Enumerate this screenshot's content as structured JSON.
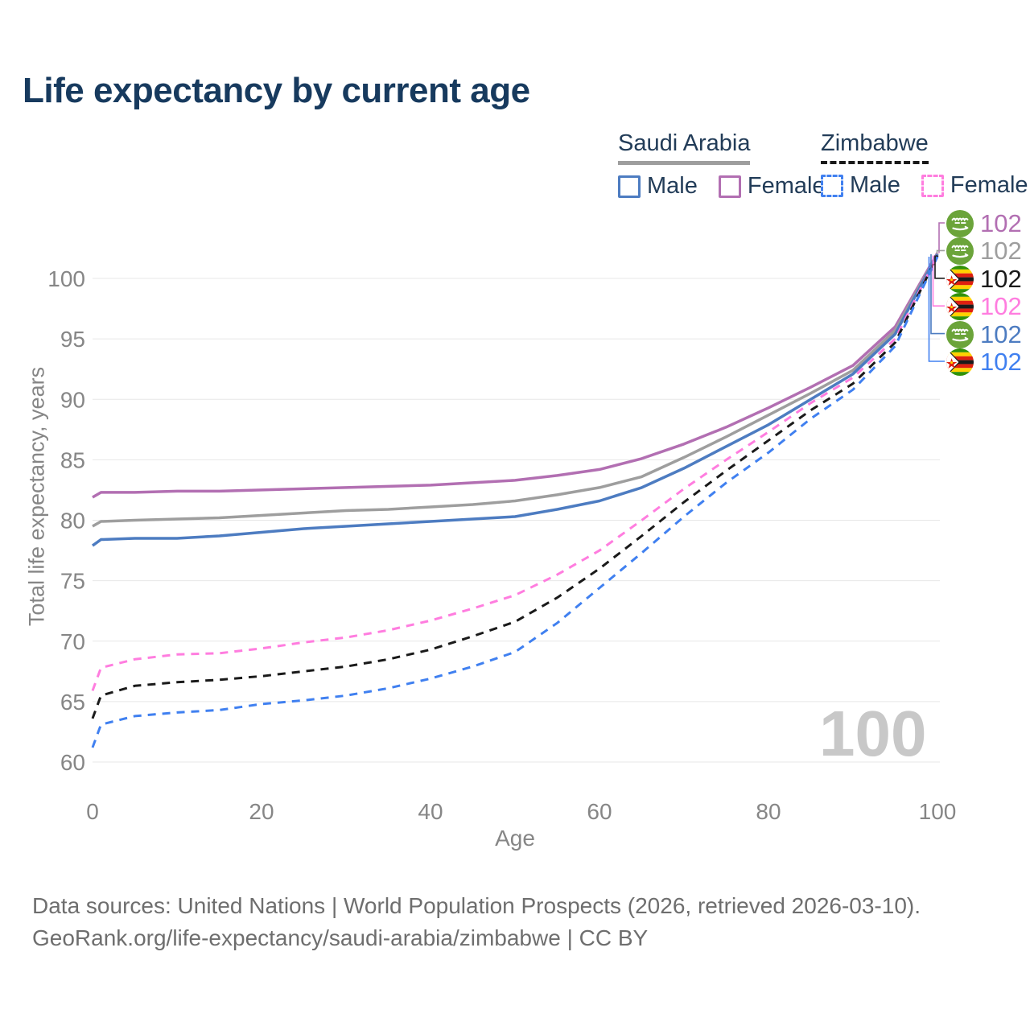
{
  "title": "Life expectancy by current age",
  "legend": {
    "groups": [
      {
        "name": "Saudi Arabia",
        "line_style": "solid",
        "underline_color": "#9e9e9e",
        "items": [
          {
            "label": "Male",
            "color": "#4d7cc1",
            "dashed": false
          },
          {
            "label": "Female",
            "color": "#b26fb2",
            "dashed": false
          }
        ]
      },
      {
        "name": "Zimbabwe",
        "line_style": "dashed",
        "underline_color": "#1a1a1a",
        "items": [
          {
            "label": "Male",
            "color": "#4080f0",
            "dashed": true
          },
          {
            "label": "Female",
            "color": "#ff7ddf",
            "dashed": true
          }
        ]
      }
    ]
  },
  "chart_data": {
    "type": "line",
    "title": "Life expectancy by current age",
    "xlabel": "Age",
    "ylabel": "Total life expectancy, years",
    "xlim": [
      0,
      100
    ],
    "ylim": [
      60,
      102.5
    ],
    "xticks": [
      0,
      20,
      40,
      60,
      80,
      100
    ],
    "yticks": [
      60,
      65,
      70,
      75,
      80,
      85,
      90,
      95,
      100
    ],
    "grid": "horizontal",
    "watermark": "100",
    "x": [
      0,
      1,
      5,
      10,
      15,
      20,
      25,
      30,
      35,
      40,
      45,
      50,
      55,
      60,
      65,
      70,
      75,
      80,
      85,
      90,
      95,
      100
    ],
    "series": [
      {
        "id": "saudi-female",
        "name": "Saudi Arabia Female",
        "color": "#b26fb2",
        "dashed": false,
        "values": [
          81.9,
          82.3,
          82.3,
          82.4,
          82.4,
          82.5,
          82.6,
          82.7,
          82.8,
          82.9,
          83.1,
          83.3,
          83.7,
          84.2,
          85.1,
          86.3,
          87.7,
          89.3,
          91.0,
          92.8,
          96.0,
          102.1
        ]
      },
      {
        "id": "saudi-total",
        "name": "Saudi Arabia",
        "color": "#9e9e9e",
        "dashed": false,
        "values": [
          79.5,
          79.9,
          80.0,
          80.1,
          80.2,
          80.4,
          80.6,
          80.8,
          80.9,
          81.1,
          81.3,
          81.6,
          82.1,
          82.7,
          83.6,
          85.2,
          86.9,
          88.7,
          90.5,
          92.4,
          95.7,
          102.0
        ]
      },
      {
        "id": "saudi-male",
        "name": "Saudi Arabia Male",
        "color": "#4d7cc1",
        "dashed": false,
        "values": [
          77.9,
          78.4,
          78.5,
          78.5,
          78.7,
          79.0,
          79.3,
          79.5,
          79.7,
          79.9,
          80.1,
          80.3,
          80.9,
          81.6,
          82.7,
          84.3,
          86.1,
          87.9,
          90.0,
          92.1,
          95.4,
          102.0
        ]
      },
      {
        "id": "zimbabwe-female",
        "name": "Zimbabwe Female",
        "color": "#ff7ddf",
        "dashed": true,
        "values": [
          65.9,
          67.8,
          68.5,
          68.9,
          69.0,
          69.4,
          69.9,
          70.3,
          70.9,
          71.7,
          72.7,
          73.8,
          75.5,
          77.5,
          80.0,
          82.6,
          85.0,
          87.3,
          89.7,
          91.8,
          95.0,
          101.9
        ]
      },
      {
        "id": "zimbabwe-total",
        "name": "Zimbabwe",
        "color": "#1a1a1a",
        "dashed": true,
        "values": [
          63.6,
          65.5,
          66.3,
          66.6,
          66.8,
          67.1,
          67.5,
          67.9,
          68.5,
          69.3,
          70.4,
          71.6,
          73.6,
          76.0,
          78.7,
          81.5,
          84.1,
          86.6,
          89.1,
          91.3,
          94.7,
          101.9
        ]
      },
      {
        "id": "zimbabwe-male",
        "name": "Zimbabwe Male",
        "color": "#4080f0",
        "dashed": true,
        "values": [
          61.2,
          63.1,
          63.8,
          64.1,
          64.3,
          64.8,
          65.1,
          65.5,
          66.1,
          66.9,
          67.9,
          69.1,
          71.5,
          74.4,
          77.3,
          80.3,
          83.1,
          85.6,
          88.4,
          90.8,
          94.4,
          101.8
        ]
      }
    ]
  },
  "end_labels": [
    {
      "series": "saudi-female",
      "flag": "sa",
      "value": "102"
    },
    {
      "series": "saudi-total",
      "flag": "sa",
      "value": "102"
    },
    {
      "series": "zimbabwe-total",
      "flag": "zw",
      "value": "102"
    },
    {
      "series": "zimbabwe-female",
      "flag": "zw",
      "value": "102"
    },
    {
      "series": "saudi-male",
      "flag": "sa",
      "value": "102"
    },
    {
      "series": "zimbabwe-male",
      "flag": "zw",
      "value": "102"
    }
  ],
  "footer": {
    "line1": "Data sources: United Nations | World Population Prospects (2026, retrieved 2026-03-10).",
    "line2": "GeoRank.org/life-expectancy/saudi-arabia/zimbabwe | CC BY"
  }
}
